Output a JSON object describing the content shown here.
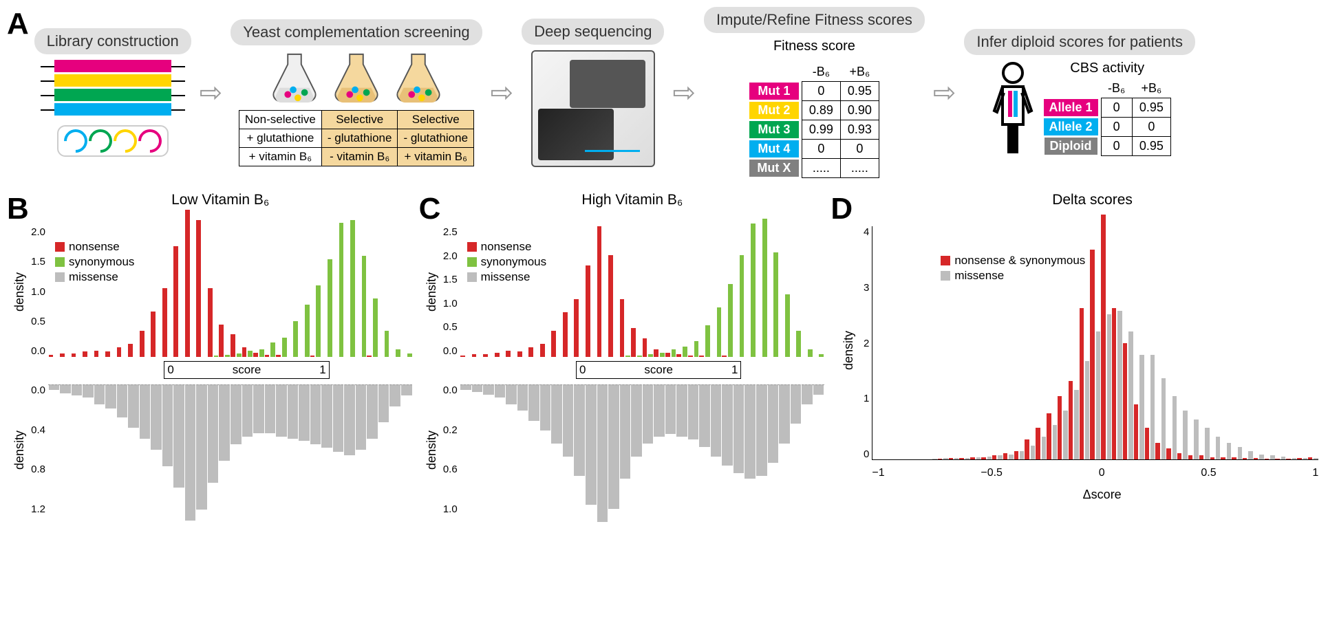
{
  "colors": {
    "magenta": "#e6007e",
    "yellow": "#ffd500",
    "green": "#00a651",
    "cyan": "#00aeef",
    "grey": "#808080",
    "red": "#d62728",
    "green2": "#7fc241",
    "lightgrey": "#bdbdbd",
    "selbg": "#f5d89e"
  },
  "panelA": {
    "steps": [
      "Library construction",
      "Yeast complementation screening",
      "Deep sequencing",
      "Impute/Refine Fitness scores",
      "Infer diploid scores for patients"
    ],
    "conditions": {
      "cols": [
        "Non-selective",
        "Selective",
        "Selective"
      ],
      "rows": [
        [
          "+ glutathione",
          "- glutathione",
          "- glutathione"
        ],
        [
          "+ vitamin B₆",
          "- vitamin B₆",
          "+ vitamin B₆"
        ]
      ],
      "bg": [
        "#ffffff",
        "#f5d89e",
        "#f5d89e"
      ]
    },
    "fitness": {
      "title": "Fitness score",
      "cols": [
        "-B₆",
        "+B₆"
      ],
      "rows": [
        {
          "label": "Mut 1",
          "color": "#e6007e",
          "v": [
            "0",
            "0.95"
          ]
        },
        {
          "label": "Mut 2",
          "color": "#ffd500",
          "v": [
            "0.89",
            "0.90"
          ]
        },
        {
          "label": "Mut 3",
          "color": "#00a651",
          "v": [
            "0.99",
            "0.93"
          ]
        },
        {
          "label": "Mut 4",
          "color": "#00aeef",
          "v": [
            "0",
            "0"
          ]
        },
        {
          "label": "Mut X",
          "color": "#808080",
          "v": [
            ".....",
            "....."
          ]
        }
      ]
    },
    "diploid": {
      "title": "CBS activity",
      "cols": [
        "-B₆",
        "+B₆"
      ],
      "rows": [
        {
          "label": "Allele 1",
          "color": "#e6007e",
          "v": [
            "0",
            "0.95"
          ]
        },
        {
          "label": "Allele 2",
          "color": "#00aeef",
          "v": [
            "0",
            "0"
          ]
        },
        {
          "label": "Diploid",
          "color": "#808080",
          "v": [
            "0",
            "0.95"
          ]
        }
      ]
    }
  },
  "panelB": {
    "title": "Low Vitamin B₆",
    "xlabel": "score",
    "ylabel": "density",
    "xlim": [
      -0.7,
      1.5
    ],
    "top_ylim": [
      0,
      2.0
    ],
    "top_yticks": [
      "0.0",
      "0.5",
      "1.0",
      "1.5",
      "2.0"
    ],
    "bot_ylim": [
      0,
      1.2
    ],
    "bot_yticks": [
      "0.0",
      "0.4",
      "0.8",
      "1.2"
    ],
    "legend": [
      [
        "nonsense",
        "#d62728"
      ],
      [
        "synonymous",
        "#7fc241"
      ],
      [
        "missense",
        "#bdbdbd"
      ]
    ],
    "nonsense": [
      0.03,
      0.05,
      0.05,
      0.08,
      0.1,
      0.08,
      0.15,
      0.2,
      0.4,
      0.7,
      1.05,
      1.7,
      2.25,
      2.1,
      1.05,
      0.5,
      0.35,
      0.15,
      0.06,
      0.03,
      0.03,
      0,
      0,
      0.02,
      0,
      0,
      0,
      0,
      0.02,
      0,
      0,
      0
    ],
    "synonymous": [
      0,
      0,
      0,
      0,
      0,
      0,
      0,
      0,
      0,
      0,
      0,
      0,
      0,
      0,
      0.02,
      0.03,
      0.05,
      0.1,
      0.12,
      0.22,
      0.3,
      0.55,
      0.8,
      1.1,
      1.5,
      2.05,
      2.1,
      1.55,
      0.9,
      0.4,
      0.12,
      0.05
    ],
    "missense": [
      0.05,
      0.08,
      0.1,
      0.12,
      0.18,
      0.22,
      0.3,
      0.4,
      0.5,
      0.6,
      0.75,
      0.95,
      1.25,
      1.15,
      0.9,
      0.7,
      0.55,
      0.48,
      0.45,
      0.45,
      0.48,
      0.5,
      0.52,
      0.55,
      0.58,
      0.62,
      0.65,
      0.6,
      0.5,
      0.35,
      0.2,
      0.1
    ]
  },
  "panelC": {
    "title": "High Vitamin B₆",
    "xlabel": "score",
    "ylabel": "density",
    "xlim": [
      -0.7,
      1.5
    ],
    "top_ylim": [
      0,
      2.5
    ],
    "top_yticks": [
      "0.0",
      "0.5",
      "1.0",
      "1.5",
      "2.0",
      "2.5"
    ],
    "bot_ylim": [
      0,
      1.0
    ],
    "bot_yticks": [
      "0.0",
      "0.2",
      "0.6",
      "1.0"
    ],
    "legend": [
      [
        "nonsense",
        "#d62728"
      ],
      [
        "synonymous",
        "#7fc241"
      ],
      [
        "missense",
        "#bdbdbd"
      ]
    ],
    "nonsense": [
      0.03,
      0.05,
      0.05,
      0.08,
      0.12,
      0.1,
      0.18,
      0.25,
      0.5,
      0.85,
      1.1,
      1.75,
      2.5,
      1.95,
      1.1,
      0.55,
      0.35,
      0.15,
      0.08,
      0.05,
      0.03,
      0.02,
      0,
      0.02,
      0,
      0,
      0,
      0,
      0,
      0,
      0,
      0
    ],
    "synonymous": [
      0,
      0,
      0,
      0,
      0,
      0,
      0,
      0,
      0,
      0,
      0,
      0,
      0,
      0,
      0.02,
      0.03,
      0.05,
      0.08,
      0.15,
      0.2,
      0.3,
      0.6,
      0.95,
      1.4,
      1.95,
      2.55,
      2.65,
      2.0,
      1.2,
      0.5,
      0.15,
      0.05
    ],
    "missense": [
      0.04,
      0.06,
      0.08,
      0.1,
      0.15,
      0.2,
      0.28,
      0.35,
      0.45,
      0.55,
      0.7,
      0.92,
      1.05,
      0.95,
      0.72,
      0.55,
      0.45,
      0.4,
      0.38,
      0.4,
      0.42,
      0.48,
      0.55,
      0.62,
      0.68,
      0.72,
      0.7,
      0.6,
      0.45,
      0.3,
      0.15,
      0.08
    ]
  },
  "panelD": {
    "title": "Delta scores",
    "xlabel": "Δscore",
    "ylabel": "density",
    "xlim": [
      -1,
      1
    ],
    "xticks": [
      "−1",
      "−0.5",
      "0",
      "0.5",
      "1"
    ],
    "ylim": [
      0,
      4
    ],
    "yticks": [
      "0",
      "1",
      "2",
      "3",
      "4"
    ],
    "legend": [
      [
        "nonsense & synonymous",
        "#d62728"
      ],
      [
        "missense",
        "#bdbdbd"
      ]
    ],
    "bins": [
      -1,
      -0.95,
      -0.9,
      -0.85,
      -0.8,
      -0.75,
      -0.7,
      -0.65,
      -0.6,
      -0.55,
      -0.5,
      -0.45,
      -0.4,
      -0.35,
      -0.3,
      -0.25,
      -0.2,
      -0.15,
      -0.1,
      -0.05,
      0,
      0.05,
      0.1,
      0.15,
      0.2,
      0.25,
      0.3,
      0.35,
      0.4,
      0.45,
      0.5,
      0.55,
      0.6,
      0.65,
      0.7,
      0.75,
      0.8,
      0.85,
      0.9,
      0.95,
      1
    ],
    "red": [
      0,
      0,
      0,
      0,
      0,
      0,
      0.02,
      0.03,
      0.03,
      0.05,
      0.05,
      0.08,
      0.12,
      0.15,
      0.35,
      0.55,
      0.8,
      1.1,
      1.35,
      2.6,
      3.6,
      4.2,
      2.6,
      2.0,
      0.95,
      0.55,
      0.3,
      0.2,
      0.12,
      0.08,
      0.08,
      0.05,
      0.05,
      0.05,
      0.03,
      0.03,
      0.02,
      0.02,
      0.02,
      0.03,
      0.05
    ],
    "grey": [
      0,
      0,
      0,
      0,
      0,
      0.02,
      0.03,
      0.03,
      0.04,
      0.05,
      0.06,
      0.08,
      0.1,
      0.15,
      0.25,
      0.4,
      0.6,
      0.85,
      1.2,
      1.7,
      2.2,
      2.5,
      2.55,
      2.2,
      1.8,
      1.8,
      1.4,
      1.1,
      0.85,
      0.7,
      0.55,
      0.4,
      0.3,
      0.22,
      0.15,
      0.1,
      0.08,
      0.06,
      0.04,
      0.03,
      0.03
    ]
  }
}
